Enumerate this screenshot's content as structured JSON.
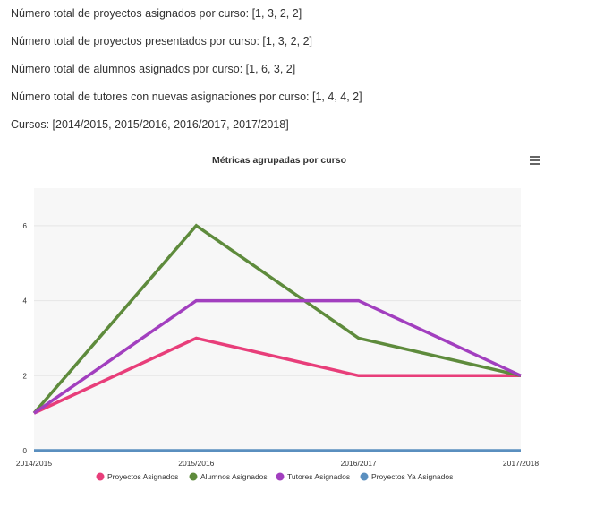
{
  "stats": [
    "Número total de proyectos asignados por curso: [1, 3, 2, 2]",
    "Número total de proyectos presentados por curso: [1, 3, 2, 2]",
    "Número total de alumnos asignados por curso: [1, 6, 3, 2]",
    "Número total de tutores con nuevas asignaciones por curso: [1, 4, 4, 2]",
    "Cursos: [2014/2015, 2015/2016, 2016/2017, 2017/2018]"
  ],
  "chart_data": {
    "type": "line",
    "title": "Métricas agrupadas por curso",
    "categories": [
      "2014/2015",
      "2015/2016",
      "2016/2017",
      "2017/2018"
    ],
    "ylim": [
      0,
      7
    ],
    "yticks": [
      0,
      2,
      4,
      6
    ],
    "grid": true,
    "legend": "bottom",
    "plot_background": "#f7f7f7",
    "series": [
      {
        "name": "Proyectos Asignados",
        "values": [
          1,
          3,
          2,
          2
        ],
        "color": "#e83e7a"
      },
      {
        "name": "Alumnos Asignados",
        "values": [
          1,
          6,
          3,
          2
        ],
        "color": "#5e8b3c"
      },
      {
        "name": "Tutores Asignados",
        "values": [
          1,
          4,
          4,
          2
        ],
        "color": "#a23fbf"
      },
      {
        "name": "Proyectos Ya Asignados",
        "values": [
          0,
          0,
          0,
          0
        ],
        "color": "#5a8fbf"
      }
    ]
  },
  "menu_icon": "hamburger-menu-icon"
}
